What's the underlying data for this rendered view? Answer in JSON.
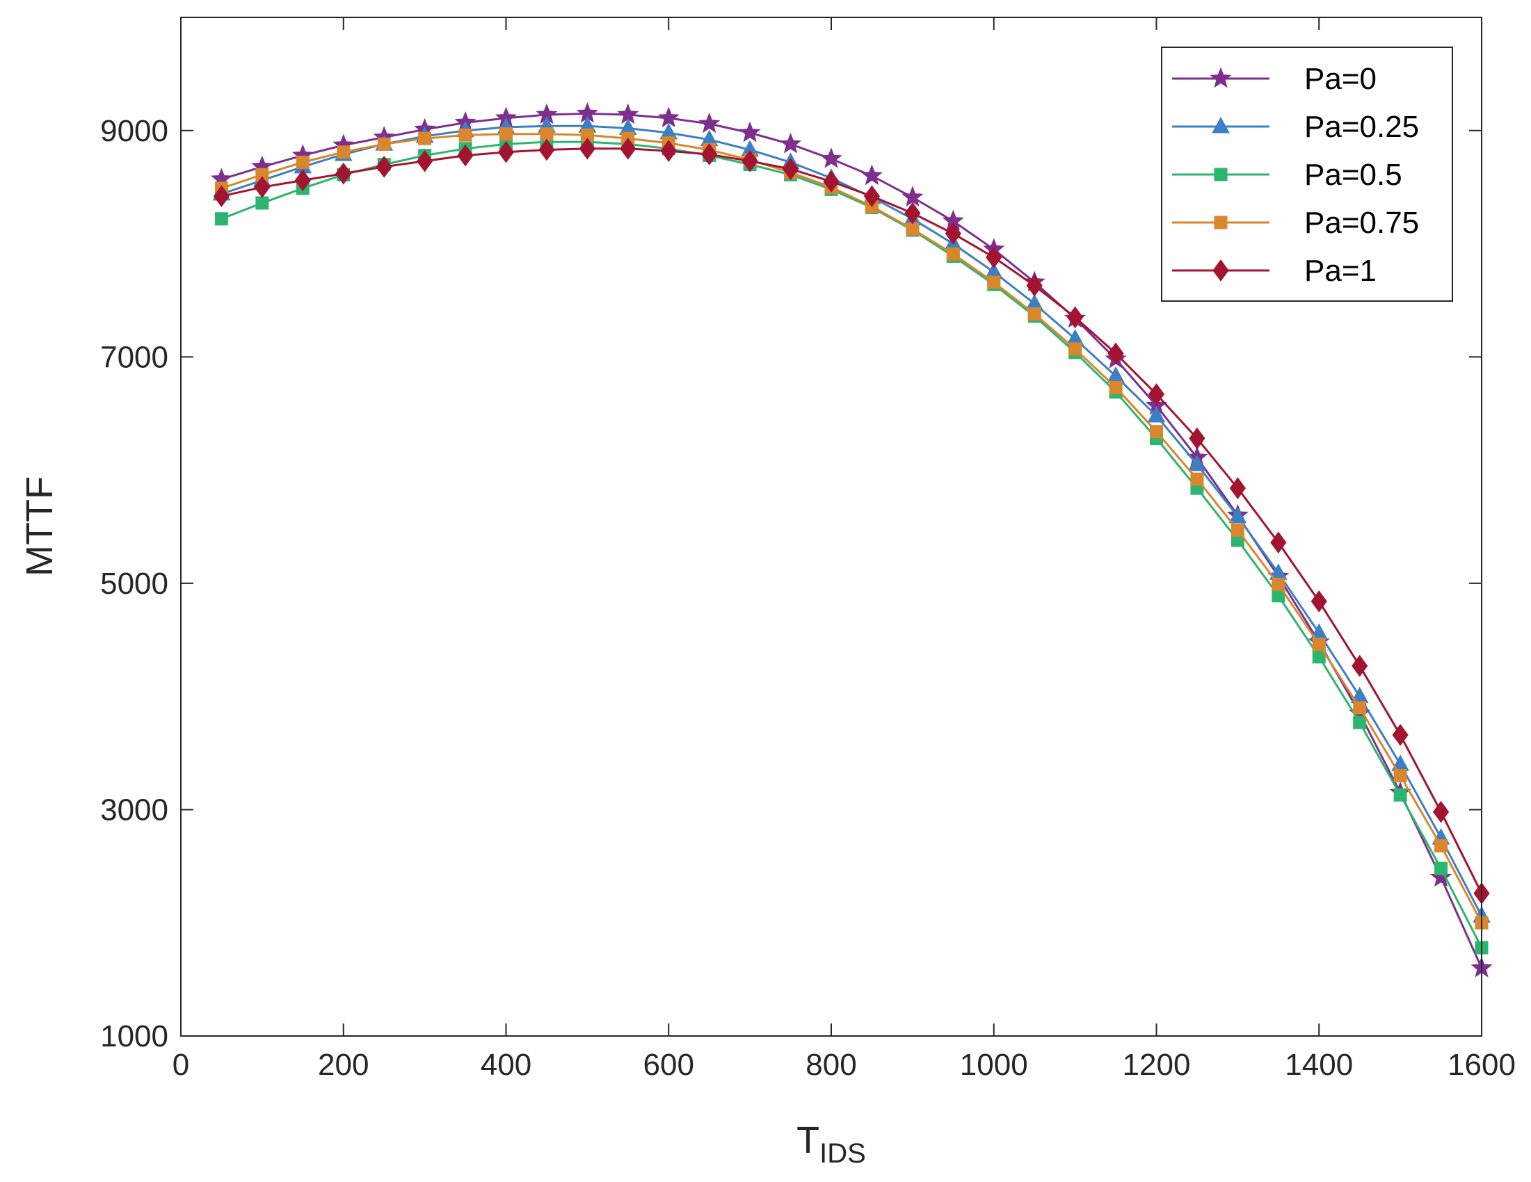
{
  "chart_data": {
    "type": "line",
    "title": "",
    "xlabel": "T",
    "xlabel_sub": "IDS",
    "ylabel": "MTTF",
    "xlim": [
      0,
      1600
    ],
    "ylim": [
      1000,
      10000
    ],
    "xticks": [
      0,
      200,
      400,
      600,
      800,
      1000,
      1200,
      1400,
      1600
    ],
    "yticks": [
      1000,
      3000,
      5000,
      7000,
      9000
    ],
    "grid": false,
    "legend_position": "top-right",
    "x": [
      50,
      100,
      150,
      200,
      250,
      300,
      350,
      400,
      450,
      500,
      550,
      600,
      650,
      700,
      750,
      800,
      850,
      900,
      950,
      1000,
      1050,
      1100,
      1150,
      1200,
      1250,
      1300,
      1350,
      1400,
      1450,
      1500,
      1550,
      1600
    ],
    "series": [
      {
        "name": "Pa=0",
        "color": "#7E2F8E",
        "marker": "star",
        "values": [
          8570,
          8680,
          8780,
          8870,
          8940,
          9010,
          9070,
          9110,
          9140,
          9150,
          9140,
          9110,
          9060,
          8980,
          8880,
          8750,
          8600,
          8410,
          8200,
          7950,
          7660,
          7340,
          6980,
          6570,
          6110,
          5600,
          5060,
          4480,
          3850,
          3150,
          2400,
          1600
        ]
      },
      {
        "name": "Pa=0.25",
        "color": "#3C7FC4",
        "marker": "triangle",
        "values": [
          8440,
          8560,
          8680,
          8790,
          8880,
          8950,
          9000,
          9030,
          9040,
          9040,
          9020,
          8980,
          8920,
          8830,
          8720,
          8580,
          8410,
          8220,
          8000,
          7750,
          7470,
          7160,
          6830,
          6480,
          6050,
          5590,
          5090,
          4560,
          4000,
          3400,
          2750,
          2060
        ]
      },
      {
        "name": "Pa=0.5",
        "color": "#2CB56F",
        "marker": "square",
        "values": [
          8220,
          8360,
          8490,
          8610,
          8700,
          8780,
          8840,
          8880,
          8900,
          8900,
          8880,
          8840,
          8780,
          8700,
          8610,
          8480,
          8320,
          8120,
          7890,
          7640,
          7360,
          7040,
          6690,
          6280,
          5840,
          5380,
          4890,
          4350,
          3770,
          3130,
          2480,
          1780
        ]
      },
      {
        "name": "Pa=0.75",
        "color": "#D9862C",
        "marker": "square",
        "values": [
          8490,
          8610,
          8720,
          8810,
          8880,
          8930,
          8960,
          8970,
          8970,
          8960,
          8930,
          8890,
          8830,
          8740,
          8630,
          8500,
          8330,
          8130,
          7910,
          7660,
          7380,
          7070,
          6730,
          6340,
          5920,
          5470,
          4990,
          4460,
          3900,
          3300,
          2680,
          2000
        ]
      },
      {
        "name": "Pa=1",
        "color": "#A2142F",
        "marker": "diamond",
        "values": [
          8420,
          8500,
          8560,
          8620,
          8680,
          8730,
          8780,
          8810,
          8830,
          8840,
          8840,
          8820,
          8790,
          8730,
          8660,
          8550,
          8420,
          8270,
          8090,
          7880,
          7630,
          7350,
          7030,
          6670,
          6280,
          5840,
          5360,
          4840,
          4270,
          3660,
          2980,
          2260
        ]
      }
    ]
  }
}
